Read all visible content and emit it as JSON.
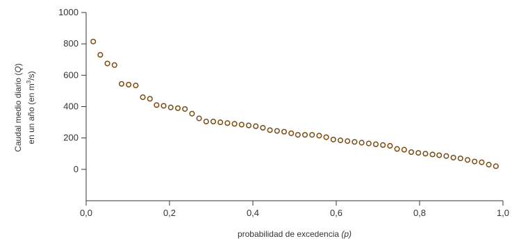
{
  "chart_data": {
    "type": "scatter",
    "title": "",
    "ylabel": {
      "line1_pre": "Caudal medio diario (",
      "line1_symbol": "Q",
      "line1_post": ")",
      "line2_pre": "en un año (en m",
      "line2_sup": "3",
      "line2_post": "/s)"
    },
    "xlabel": {
      "pre": "probabilidad de excedencia ",
      "symbol": "(p)"
    },
    "xlim": [
      0,
      1
    ],
    "ylim": [
      -200,
      1000
    ],
    "x_ticks": [
      0,
      0.2,
      0.4,
      0.6,
      0.8,
      1
    ],
    "x_tick_labels": [
      "0,0",
      "0,2",
      "0,4",
      "0,6",
      "0,8",
      "1,0"
    ],
    "y_ticks": [
      0,
      200,
      400,
      600,
      800,
      1000
    ],
    "y_tick_labels": [
      "0",
      "200",
      "400",
      "600",
      "800",
      "1000"
    ],
    "grid": false,
    "marker_color": "#7a4a10",
    "points": [
      {
        "x": 0.017,
        "y": 815
      },
      {
        "x": 0.034,
        "y": 730
      },
      {
        "x": 0.051,
        "y": 675
      },
      {
        "x": 0.068,
        "y": 665
      },
      {
        "x": 0.085,
        "y": 545
      },
      {
        "x": 0.102,
        "y": 540
      },
      {
        "x": 0.119,
        "y": 535
      },
      {
        "x": 0.136,
        "y": 460
      },
      {
        "x": 0.153,
        "y": 450
      },
      {
        "x": 0.169,
        "y": 410
      },
      {
        "x": 0.186,
        "y": 405
      },
      {
        "x": 0.203,
        "y": 395
      },
      {
        "x": 0.22,
        "y": 390
      },
      {
        "x": 0.237,
        "y": 385
      },
      {
        "x": 0.254,
        "y": 355
      },
      {
        "x": 0.271,
        "y": 325
      },
      {
        "x": 0.288,
        "y": 305
      },
      {
        "x": 0.305,
        "y": 305
      },
      {
        "x": 0.322,
        "y": 300
      },
      {
        "x": 0.339,
        "y": 295
      },
      {
        "x": 0.356,
        "y": 290
      },
      {
        "x": 0.373,
        "y": 285
      },
      {
        "x": 0.39,
        "y": 280
      },
      {
        "x": 0.407,
        "y": 275
      },
      {
        "x": 0.424,
        "y": 265
      },
      {
        "x": 0.441,
        "y": 250
      },
      {
        "x": 0.458,
        "y": 245
      },
      {
        "x": 0.475,
        "y": 240
      },
      {
        "x": 0.492,
        "y": 230
      },
      {
        "x": 0.508,
        "y": 220
      },
      {
        "x": 0.525,
        "y": 220
      },
      {
        "x": 0.542,
        "y": 220
      },
      {
        "x": 0.559,
        "y": 215
      },
      {
        "x": 0.576,
        "y": 205
      },
      {
        "x": 0.593,
        "y": 190
      },
      {
        "x": 0.61,
        "y": 185
      },
      {
        "x": 0.627,
        "y": 180
      },
      {
        "x": 0.644,
        "y": 175
      },
      {
        "x": 0.661,
        "y": 170
      },
      {
        "x": 0.678,
        "y": 165
      },
      {
        "x": 0.695,
        "y": 160
      },
      {
        "x": 0.712,
        "y": 155
      },
      {
        "x": 0.729,
        "y": 150
      },
      {
        "x": 0.746,
        "y": 130
      },
      {
        "x": 0.763,
        "y": 125
      },
      {
        "x": 0.78,
        "y": 110
      },
      {
        "x": 0.797,
        "y": 105
      },
      {
        "x": 0.814,
        "y": 100
      },
      {
        "x": 0.831,
        "y": 95
      },
      {
        "x": 0.847,
        "y": 90
      },
      {
        "x": 0.864,
        "y": 85
      },
      {
        "x": 0.881,
        "y": 75
      },
      {
        "x": 0.898,
        "y": 70
      },
      {
        "x": 0.915,
        "y": 60
      },
      {
        "x": 0.932,
        "y": 50
      },
      {
        "x": 0.949,
        "y": 45
      },
      {
        "x": 0.966,
        "y": 30
      },
      {
        "x": 0.983,
        "y": 20
      }
    ]
  }
}
